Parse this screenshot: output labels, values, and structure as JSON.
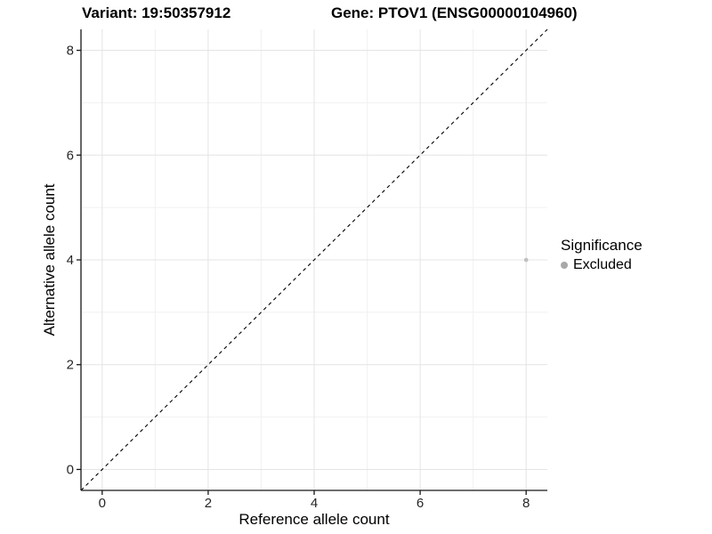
{
  "chart_data": {
    "type": "scatter",
    "title_left": "Variant: 19:50357912",
    "title_right": "Gene: PTOV1 (ENSG00000104960)",
    "xlabel": "Reference allele count",
    "ylabel": "Alternative allele count",
    "xlim": [
      -0.4,
      8.4
    ],
    "ylim": [
      -0.4,
      8.4
    ],
    "xticks": [
      0,
      2,
      4,
      6,
      8
    ],
    "yticks": [
      0,
      2,
      4,
      6,
      8
    ],
    "minor_xticks": [
      1,
      3,
      5,
      7
    ],
    "minor_yticks": [
      1,
      3,
      5,
      7
    ],
    "grid": "major+minor",
    "points": [
      {
        "x": 8,
        "y": 4,
        "series": "Excluded"
      }
    ],
    "abline": {
      "slope": 1,
      "intercept": 0,
      "style": "dashed"
    },
    "legend": {
      "title": "Significance",
      "position": "right",
      "items": [
        {
          "label": "Excluded",
          "color": "#a8a8a8"
        }
      ]
    },
    "colors": {
      "point": "#bfbfbf",
      "grid_major": "#e4e4e4",
      "grid_minor": "#f1f1f1",
      "axis_line": "#171717",
      "tick_label": "#262626",
      "abline": "#000000",
      "background": "#ffffff"
    }
  }
}
